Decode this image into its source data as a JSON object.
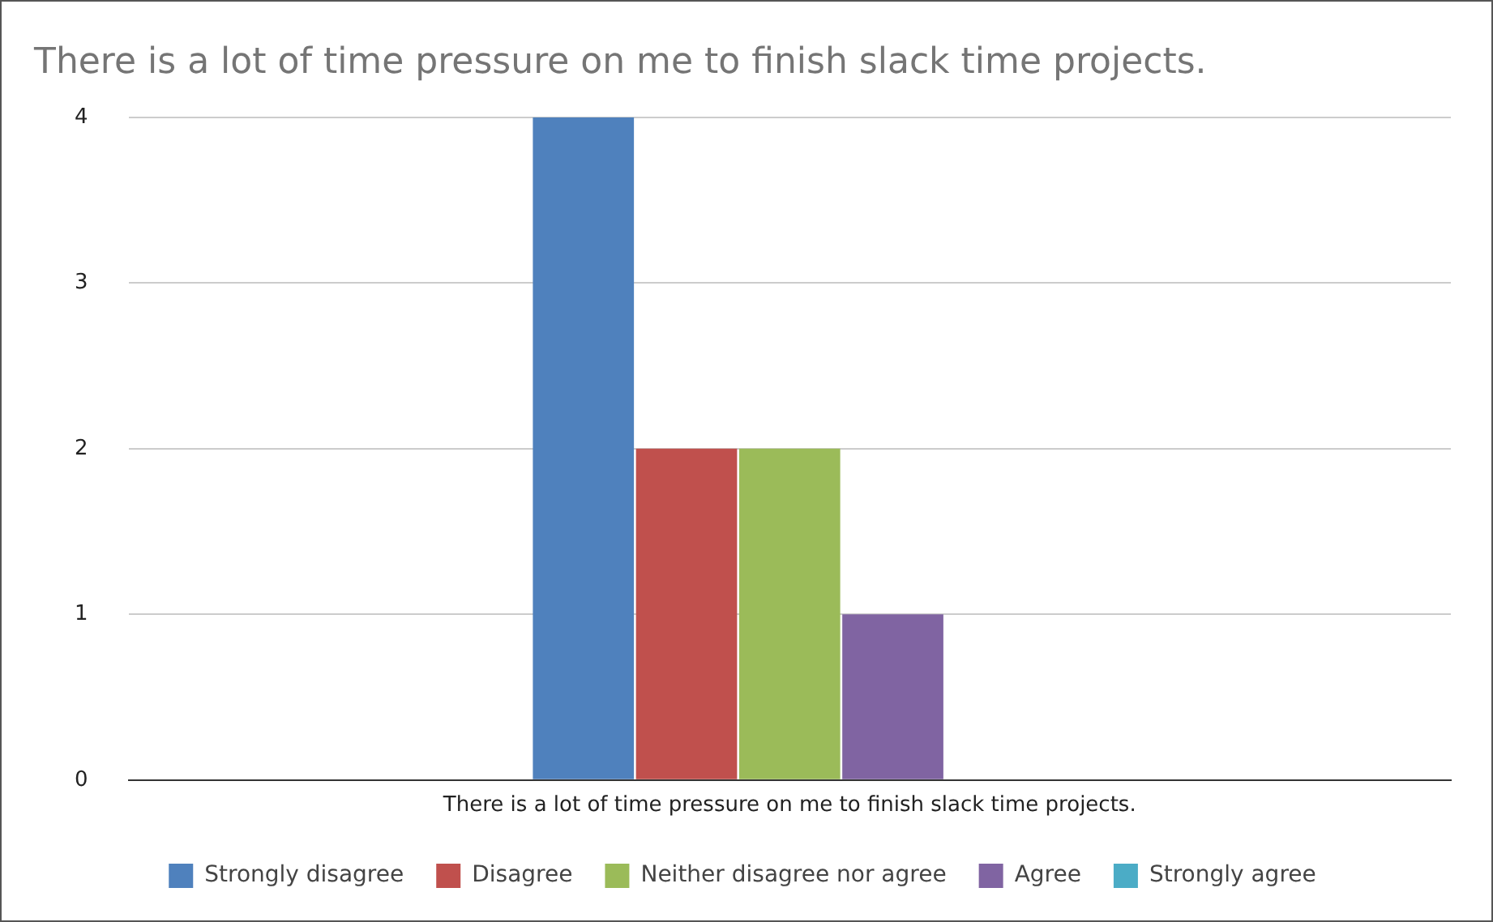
{
  "chart_data": {
    "type": "bar",
    "title": "There is a lot of time pressure on me to finish slack time projects.",
    "categories": [
      "There is a lot of time pressure on me to finish slack time projects."
    ],
    "series": [
      {
        "name": "Strongly disagree",
        "color": "#4f81bd",
        "values": [
          4
        ]
      },
      {
        "name": "Disagree",
        "color": "#c0504d",
        "values": [
          2
        ]
      },
      {
        "name": "Neither disagree nor agree",
        "color": "#9bbb59",
        "values": [
          2
        ]
      },
      {
        "name": "Agree",
        "color": "#8064a2",
        "values": [
          1
        ]
      },
      {
        "name": "Strongly agree",
        "color": "#4bacc6",
        "values": [
          0
        ]
      }
    ],
    "ylim": [
      0,
      4
    ],
    "yticks": [
      0,
      1,
      2,
      3,
      4
    ],
    "grid": "y",
    "legend": "bottom"
  }
}
